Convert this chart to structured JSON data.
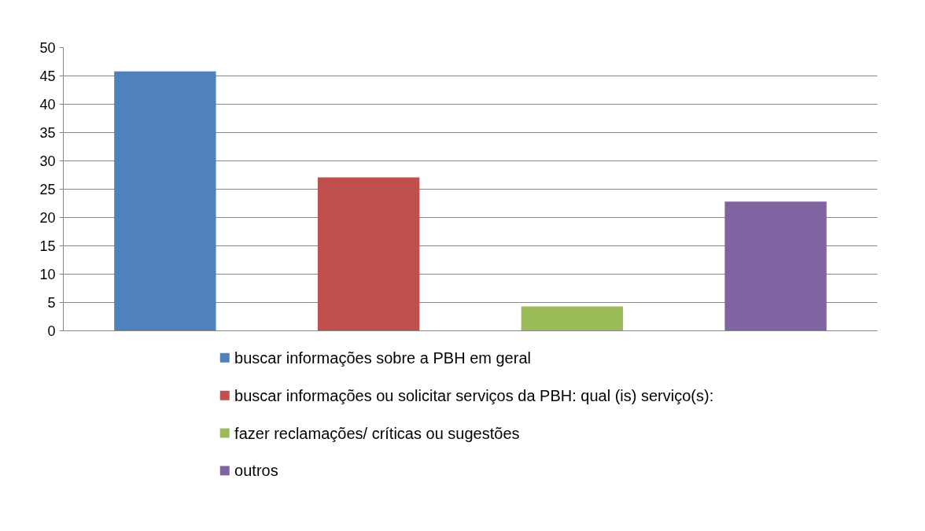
{
  "chart_data": {
    "type": "bar",
    "categories": [
      null
    ],
    "series": [
      {
        "name": "buscar informações sobre a PBH em geral",
        "color": "#4f81bd",
        "values": [
          45.8
        ]
      },
      {
        "name": "buscar informações ou solicitar  serviços da PBH: qual (is) serviço(s):",
        "color": "#c0504d",
        "values": [
          27.1
        ]
      },
      {
        "name": "fazer reclamações/ críticas ou sugestões",
        "color": "#9bbb59",
        "values": [
          4.3
        ]
      },
      {
        "name": "outros",
        "color": "#8064a2",
        "values": [
          22.8
        ]
      }
    ],
    "ylim": [
      0,
      50
    ],
    "yticks": [
      0,
      5,
      10,
      15,
      20,
      25,
      30,
      35,
      40,
      45,
      50
    ],
    "grid": "y",
    "legend": "bottom"
  }
}
